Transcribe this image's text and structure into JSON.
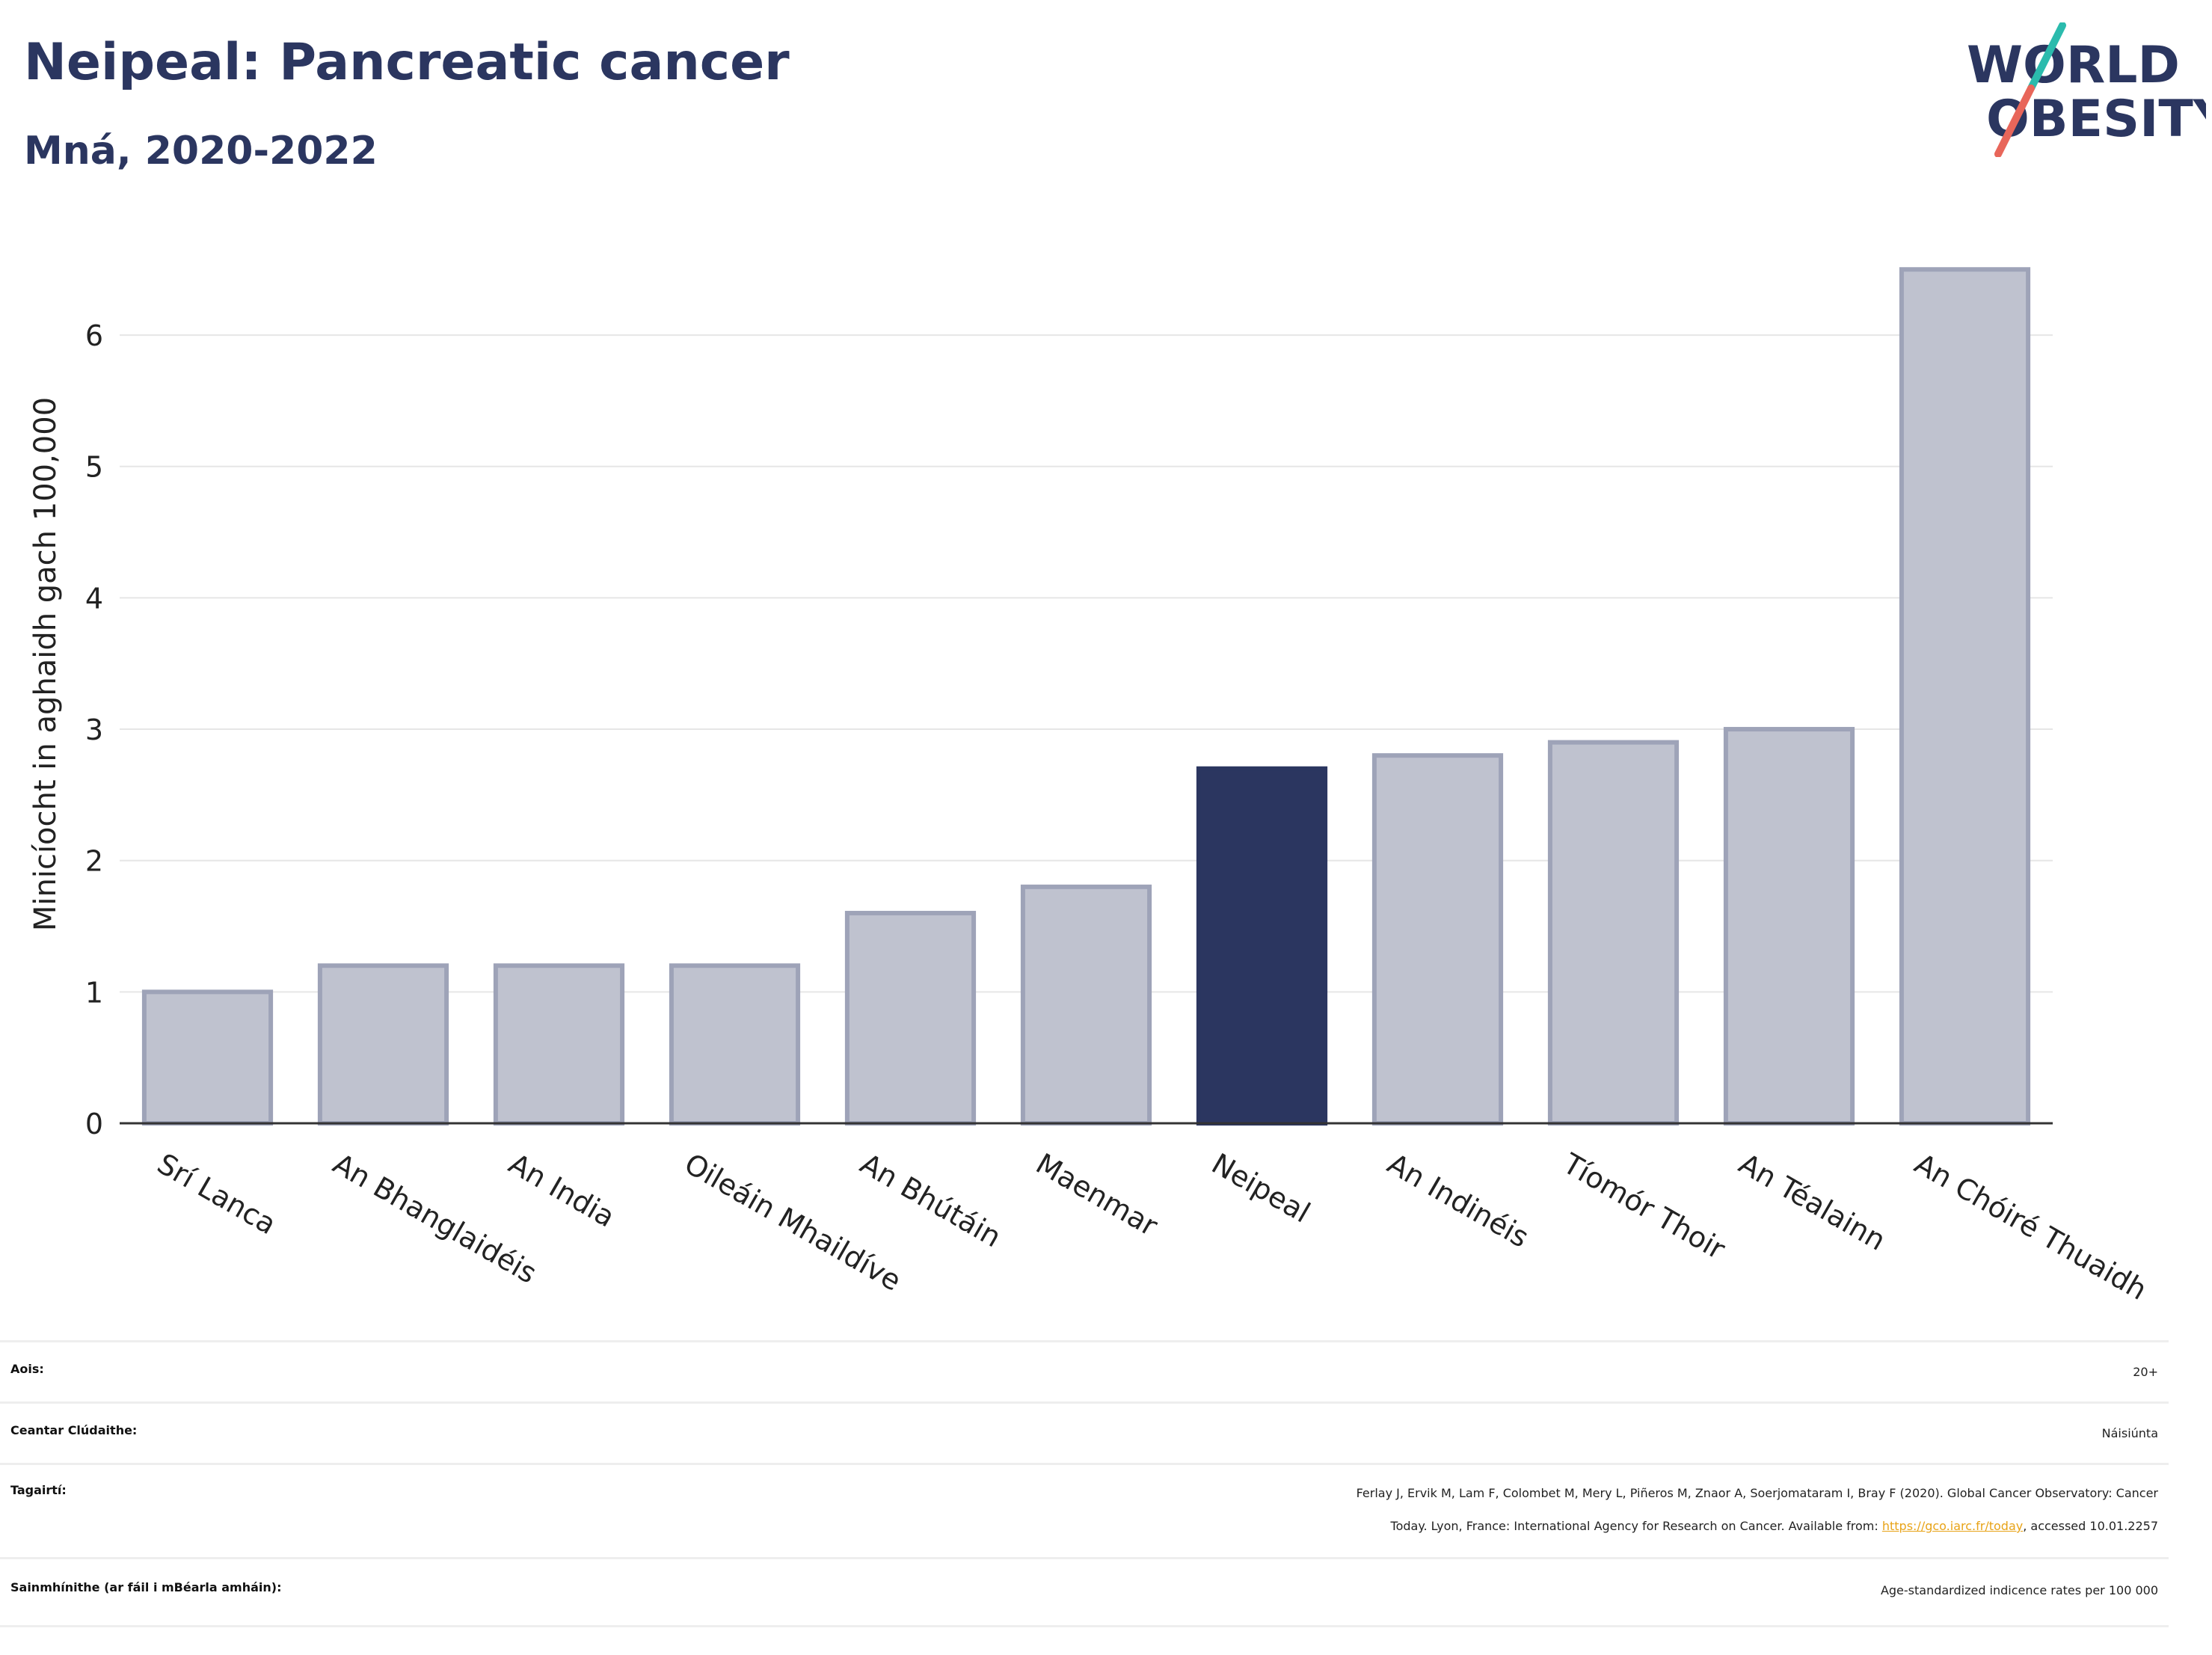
{
  "title": "Neipeal: Pancreatic cancer",
  "subtitle": "Mná, 2020-2022",
  "logo": {
    "line1": "WORLD",
    "line2": "OBESITY",
    "colors": {
      "text": "#2b3660",
      "slash_top": "#2bbbad",
      "slash_bottom": "#e8665a"
    }
  },
  "chart_data": {
    "type": "bar",
    "categories": [
      "Srí Lanca",
      "An Bhanglaidéis",
      "An India",
      "Oileáin Mhaildíve",
      "An Bhútáin",
      "Maenmar",
      "Neipeal",
      "An Indinéis",
      "Tíomór Thoir",
      "An Téalainn",
      "An Chóiré Thuaidh"
    ],
    "values": [
      1.0,
      1.2,
      1.2,
      1.2,
      1.6,
      1.8,
      2.7,
      2.8,
      2.9,
      3.0,
      6.5
    ],
    "highlight": "Neipeal",
    "ylabel": "Minicíocht in aghaidh gach 100,000",
    "xlabel": "",
    "ylim": [
      0,
      6.9
    ],
    "yticks": [
      0,
      1,
      2,
      3,
      4,
      5,
      6
    ],
    "grid": true,
    "colors": {
      "bar": "#bfc2cf",
      "bar_edge": "#9ea3b8",
      "highlight": "#2b3660"
    }
  },
  "meta": {
    "age_label": "Aois:",
    "age_value": "20+",
    "area_label": "Ceantar Clúdaithe:",
    "area_value": "Náisiúnta",
    "ref_label": "Tagairtí:",
    "ref_line1": "Ferlay J, Ervik M, Lam F, Colombet M, Mery L, Piñeros M, Znaor A, Soerjomataram I, Bray F (2020). Global Cancer Observatory: Cancer",
    "ref_line2_pre": "Today. Lyon, France: International Agency for Research on Cancer. Available from: ",
    "ref_link": "https://gco.iarc.fr/today",
    "ref_line2_post": ", accessed 10.01.2257",
    "def_label": "Sainmhínithe (ar fáil i mBéarla amháin):",
    "def_value": "Age-standardized indicence rates per 100 000"
  }
}
